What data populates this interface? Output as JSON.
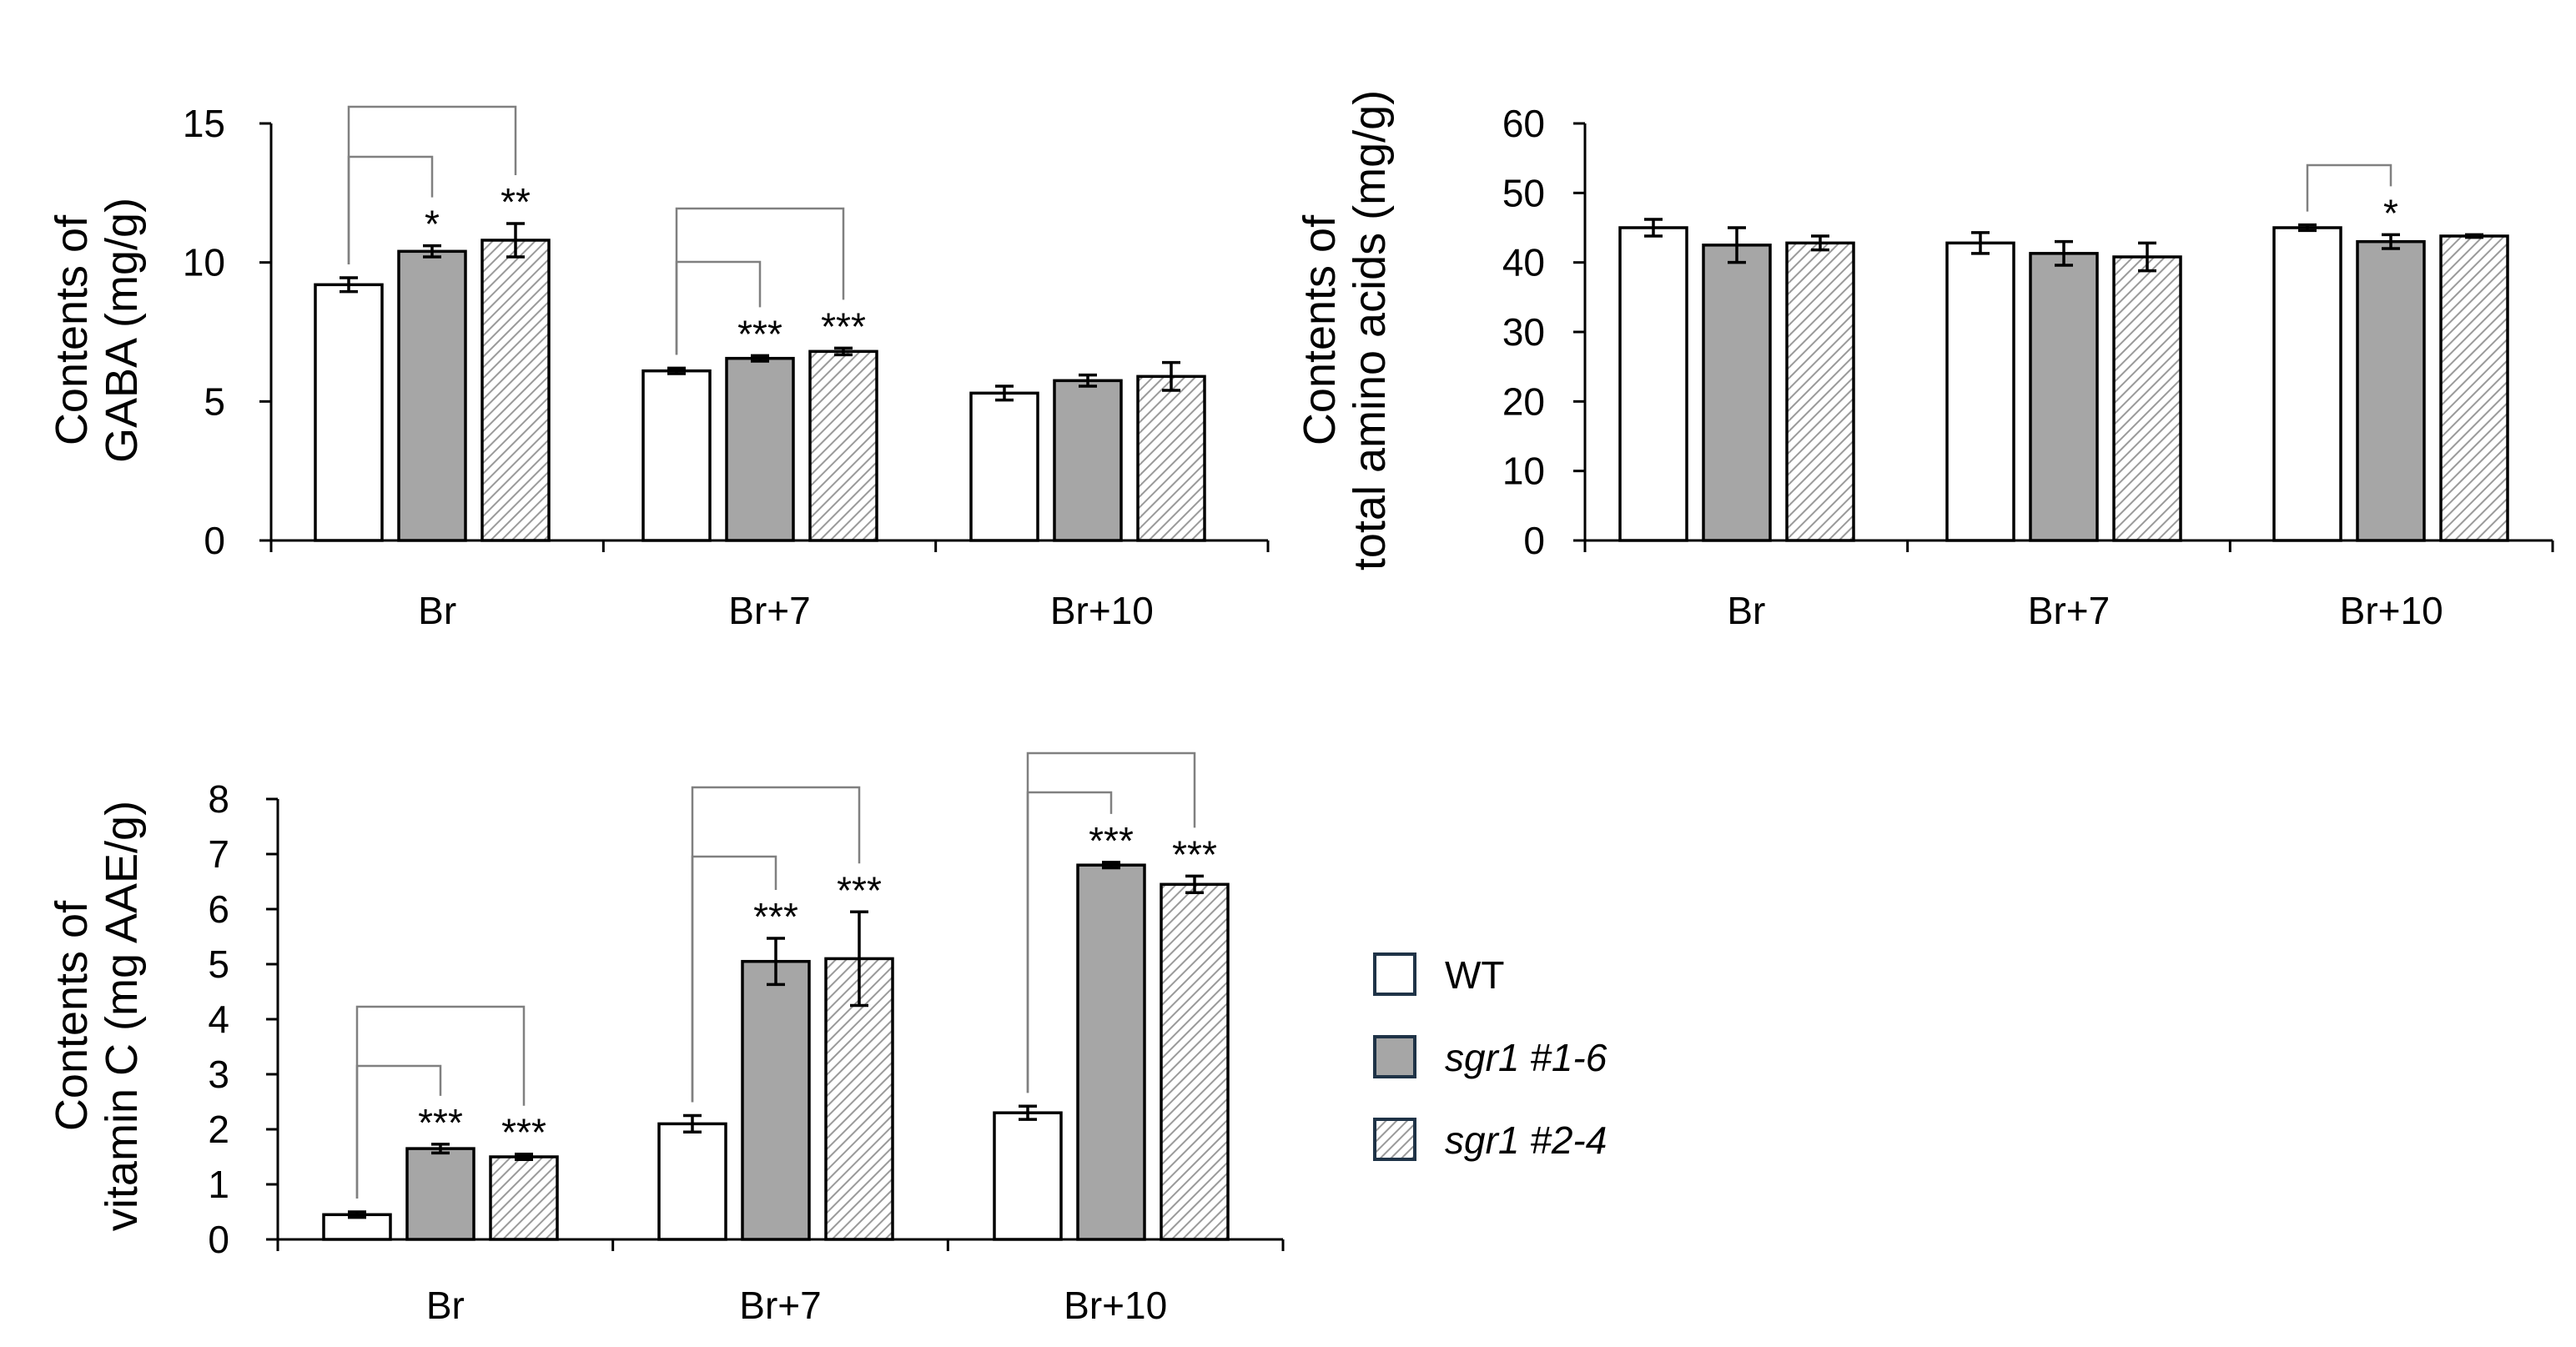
{
  "colors": {
    "wt": "#ffffff",
    "sgr16": "#a6a6a6",
    "hatch_bg": "#ffffff",
    "hatch_line": "#9a9a9a"
  },
  "legend": {
    "items": [
      {
        "key": "wt",
        "label": "WT",
        "italic": false
      },
      {
        "key": "sgr16",
        "label": "sgr1 #1-6",
        "italic": true
      },
      {
        "key": "sgr24",
        "label": "sgr1 #2-4",
        "italic": true
      }
    ]
  },
  "chart_data": [
    {
      "type": "bar",
      "id": "gaba",
      "ylabel_lines": [
        "Contents of",
        "GABA (mg/g)"
      ],
      "categories": [
        "Br",
        "Br+7",
        "Br+10"
      ],
      "ylim": [
        0,
        15
      ],
      "yticks": [
        0,
        5,
        10,
        15
      ],
      "series": [
        {
          "name": "WT",
          "values": [
            9.2,
            6.1,
            5.3
          ],
          "errors": [
            0.25,
            0.1,
            0.25
          ]
        },
        {
          "name": "sgr1 #1-6",
          "values": [
            10.4,
            6.55,
            5.75
          ],
          "errors": [
            0.2,
            0.1,
            0.2
          ]
        },
        {
          "name": "sgr1 #2-4",
          "values": [
            10.8,
            6.8,
            5.9
          ],
          "errors": [
            0.6,
            0.12,
            0.5
          ]
        }
      ],
      "significance": [
        [
          "*",
          "**"
        ],
        [
          "***",
          "***"
        ],
        [
          "",
          ""
        ]
      ]
    },
    {
      "type": "bar",
      "id": "amino",
      "ylabel_lines": [
        "Contents of",
        "total amino acids (mg/g)"
      ],
      "categories": [
        "Br",
        "Br+7",
        "Br+10"
      ],
      "ylim": [
        0,
        60
      ],
      "yticks": [
        0,
        10,
        20,
        30,
        40,
        50,
        60
      ],
      "series": [
        {
          "name": "WT",
          "values": [
            45,
            42.8,
            45
          ],
          "errors": [
            1.2,
            1.5,
            0.4
          ]
        },
        {
          "name": "sgr1 #1-6",
          "values": [
            42.5,
            41.3,
            43
          ],
          "errors": [
            2.5,
            1.7,
            1.0
          ]
        },
        {
          "name": "sgr1 #2-4",
          "values": [
            42.8,
            40.8,
            43.8
          ],
          "errors": [
            1.0,
            2.0,
            0.2
          ]
        }
      ],
      "significance": [
        [
          "",
          ""
        ],
        [
          "",
          ""
        ],
        [
          "*",
          ""
        ]
      ]
    },
    {
      "type": "bar",
      "id": "vitc",
      "ylabel_lines": [
        "Contents of",
        "vitamin C (mg AAE/g)"
      ],
      "categories": [
        "Br",
        "Br+7",
        "Br+10"
      ],
      "ylim": [
        0,
        8
      ],
      "yticks": [
        0,
        1,
        2,
        3,
        4,
        5,
        6,
        7,
        8
      ],
      "series": [
        {
          "name": "WT",
          "values": [
            0.45,
            2.1,
            2.3
          ],
          "errors": [
            0.05,
            0.15,
            0.12
          ]
        },
        {
          "name": "sgr1 #1-6",
          "values": [
            1.65,
            5.05,
            6.8
          ],
          "errors": [
            0.08,
            0.42,
            0.05
          ]
        },
        {
          "name": "sgr1 #2-4",
          "values": [
            1.5,
            5.1,
            6.45
          ],
          "errors": [
            0.05,
            0.85,
            0.15
          ]
        }
      ],
      "significance": [
        [
          "***",
          "***"
        ],
        [
          "***",
          "***"
        ],
        [
          "***",
          "***"
        ]
      ]
    }
  ]
}
